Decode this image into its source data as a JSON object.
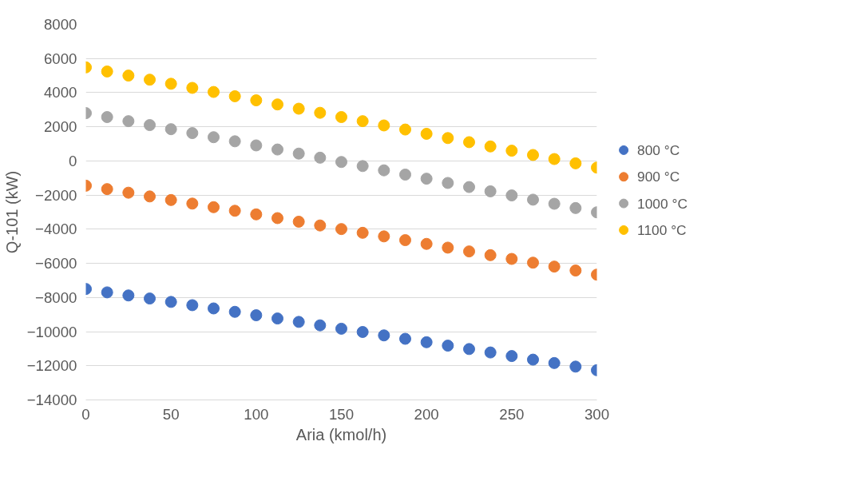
{
  "chart_data": {
    "type": "scatter",
    "xlabel": "Aria (kmol/h)",
    "ylabel": "Q-101 (kW)",
    "x": [
      0,
      12.5,
      25,
      37.5,
      50,
      62.5,
      75,
      87.5,
      100,
      112.5,
      125,
      137.5,
      150,
      162.5,
      175,
      187.5,
      200,
      212.5,
      225,
      237.5,
      250,
      262.5,
      275,
      287.5,
      300
    ],
    "series": [
      {
        "name": "800 °C",
        "color": "#4472c4",
        "values": [
          -7500,
          -7700,
          -7880,
          -8060,
          -8260,
          -8450,
          -8640,
          -8840,
          -9040,
          -9230,
          -9430,
          -9630,
          -9830,
          -10020,
          -10220,
          -10420,
          -10620,
          -10820,
          -11020,
          -11220,
          -11430,
          -11640,
          -11840,
          -12050,
          -12260
        ]
      },
      {
        "name": "900 °C",
        "color": "#ed7d31",
        "values": [
          -1450,
          -1650,
          -1860,
          -2080,
          -2290,
          -2500,
          -2710,
          -2920,
          -3130,
          -3350,
          -3560,
          -3780,
          -3990,
          -4210,
          -4420,
          -4640,
          -4860,
          -5080,
          -5300,
          -5520,
          -5740,
          -5960,
          -6190,
          -6420,
          -6660
        ]
      },
      {
        "name": "1000 °C",
        "color": "#a5a5a5",
        "values": [
          2800,
          2570,
          2330,
          2100,
          1860,
          1630,
          1390,
          1150,
          910,
          670,
          430,
          190,
          -60,
          -300,
          -550,
          -800,
          -1040,
          -1290,
          -1530,
          -1780,
          -2020,
          -2270,
          -2510,
          -2760,
          -3010
        ]
      },
      {
        "name": "1100 °C",
        "color": "#ffc000",
        "values": [
          5480,
          5240,
          5000,
          4760,
          4520,
          4280,
          4040,
          3790,
          3550,
          3310,
          3060,
          2820,
          2570,
          2330,
          2080,
          1840,
          1590,
          1340,
          1100,
          850,
          600,
          350,
          110,
          -140,
          -390
        ]
      }
    ],
    "xlim": [
      0,
      300
    ],
    "xticks": [
      0,
      50,
      100,
      150,
      200,
      250,
      300
    ],
    "ylim": [
      -14000,
      8000
    ],
    "yticks": [
      -14000,
      -12000,
      -10000,
      -8000,
      -6000,
      -4000,
      -2000,
      0,
      2000,
      4000,
      6000,
      8000
    ],
    "grid": "y",
    "legend": "right",
    "marker": "circle"
  }
}
